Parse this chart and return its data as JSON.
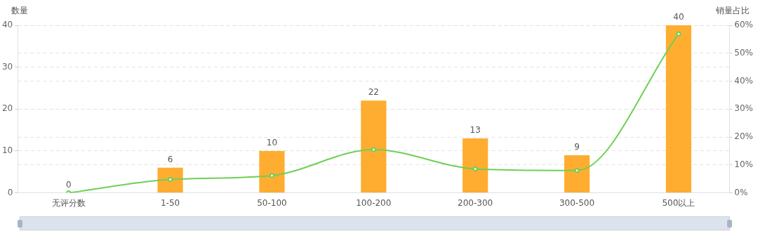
{
  "chart_data": {
    "type": "bar",
    "ylabel": "数量",
    "y2label": "销量占比",
    "categories": [
      "无评分数",
      "1-50",
      "50-100",
      "100-200",
      "200-300",
      "300-500",
      "500以上"
    ],
    "series": [
      {
        "color": "#ffad30",
        "values": [
          0,
          6,
          10,
          22,
          13,
          9,
          40
        ],
        "value_labels": [
          "0",
          "6",
          "10",
          "22",
          "13",
          "9",
          "40"
        ]
      },
      {
        "type": "line",
        "axis": "y2",
        "color": "#6fcf55",
        "values": [
          0,
          4.8,
          6.2,
          15.5,
          8.6,
          8.0,
          56.9
        ]
      }
    ],
    "ylim": [
      0,
      40
    ],
    "yticks": [
      0,
      10,
      20,
      30,
      40
    ],
    "y2lim": [
      0,
      60
    ],
    "y2ticks": [
      {
        "value": 0,
        "label": "0%"
      },
      {
        "value": 10,
        "label": "10%"
      },
      {
        "value": 20,
        "label": "20%"
      },
      {
        "value": 30,
        "label": "30%"
      },
      {
        "value": 40,
        "label": "40%"
      },
      {
        "value": 50,
        "label": "50%"
      },
      {
        "value": 60,
        "label": "60%"
      }
    ],
    "grid": "y",
    "legend": false,
    "marker": "circle",
    "line_style": "solid"
  }
}
